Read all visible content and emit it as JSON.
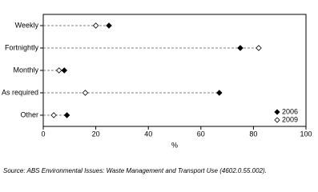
{
  "chart_data": {
    "type": "dot",
    "categories": [
      "Weekly",
      "Fortnightly",
      "Monthly",
      "As required",
      "Other"
    ],
    "series": [
      {
        "name": "2006",
        "color": "#000000",
        "filled": true,
        "values": [
          25,
          75,
          8,
          67,
          9
        ]
      },
      {
        "name": "2009",
        "color": "#000000",
        "filled": false,
        "values": [
          20,
          82,
          6,
          16,
          4
        ]
      }
    ],
    "xlabel": "%",
    "xlim": [
      0,
      100
    ],
    "xticks": [
      0,
      20,
      40,
      60,
      80,
      100
    ],
    "legend": "lower right",
    "source": "Source: ABS Environmental Issues: Waste Management and Transport Use (4602.0.55.002)."
  }
}
